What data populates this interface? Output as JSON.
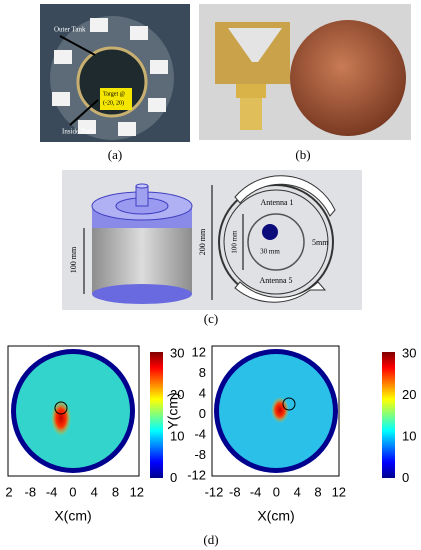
{
  "panel_a": {
    "label": "(a)",
    "annotations": [
      "Outer Tank",
      "Target @",
      "(-20, 20)",
      "Inside Tank"
    ]
  },
  "panel_b": {
    "label": "(b)"
  },
  "panel_c": {
    "label": "(c)",
    "annotations": [
      "100 mm",
      "200 mm",
      "Antenna 1",
      "100 mm",
      "30 mm",
      "5mm",
      "Antenna 5"
    ]
  },
  "panel_d": {
    "label": "(d)",
    "left": {
      "xticks": [
        "2",
        "-8",
        "-4",
        "0",
        "4",
        "8",
        "12"
      ],
      "xlabel": "X(cm)",
      "colorbar_ticks": [
        30,
        20,
        10,
        0
      ]
    },
    "right": {
      "xticks": [
        "-12",
        "-8",
        "-4",
        "0",
        "4",
        "8",
        "12"
      ],
      "yticks": [
        "12",
        "8",
        "4",
        "0",
        "-4",
        "-8",
        "-12"
      ],
      "xlabel": "X(cm)",
      "ylabel": "Y(cm)",
      "colorbar_ticks": [
        30,
        20,
        10,
        0
      ]
    }
  }
}
